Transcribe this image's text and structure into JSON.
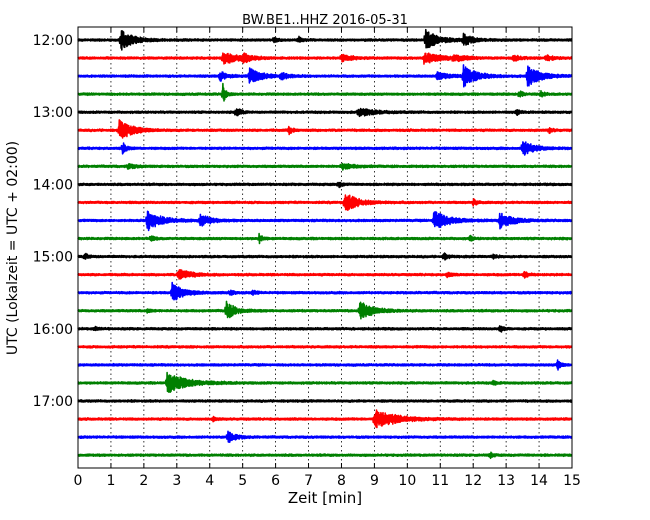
{
  "chart_data": {
    "type": "line",
    "title": "BW.BE1..HHZ 2016-05-31",
    "xlabel": "Zeit  [min]",
    "ylabel": "UTC (Lokalzeit = UTC + 02:00)",
    "xlim": [
      0,
      15
    ],
    "x_ticks": [
      "0",
      "1",
      "2",
      "3",
      "4",
      "5",
      "6",
      "7",
      "8",
      "9",
      "10",
      "11",
      "12",
      "13",
      "14",
      "15"
    ],
    "y_ticks": [
      "12:00",
      "13:00",
      "14:00",
      "15:00",
      "16:00",
      "17:00"
    ],
    "grid": "vertical dotted lines at each minute",
    "colors": [
      "#000000",
      "#ff0000",
      "#0000ff",
      "#008000"
    ],
    "trace_interval_min": 15,
    "series": [
      {
        "start": "12:00",
        "color": "#000000",
        "events": [
          {
            "t": 1.3,
            "a": 1.0,
            "d": 0.35
          },
          {
            "t": 5.95,
            "a": 0.25,
            "d": 0.1
          },
          {
            "t": 6.7,
            "a": 0.3,
            "d": 0.1
          },
          {
            "t": 10.55,
            "a": 1.0,
            "d": 0.35
          },
          {
            "t": 11.7,
            "a": 0.55,
            "d": 0.25
          }
        ]
      },
      {
        "start": "12:15",
        "color": "#ff0000",
        "events": [
          {
            "t": 4.4,
            "a": 0.6,
            "d": 0.45
          },
          {
            "t": 5.0,
            "a": 0.35,
            "d": 0.2
          },
          {
            "t": 8.0,
            "a": 0.35,
            "d": 0.3
          },
          {
            "t": 10.5,
            "a": 0.55,
            "d": 0.45
          },
          {
            "t": 11.4,
            "a": 0.3,
            "d": 0.3
          },
          {
            "t": 13.2,
            "a": 0.3,
            "d": 0.2
          },
          {
            "t": 14.2,
            "a": 0.3,
            "d": 0.2
          }
        ]
      },
      {
        "start": "12:30",
        "color": "#0000ff",
        "events": [
          {
            "t": 4.3,
            "a": 0.5,
            "d": 0.2
          },
          {
            "t": 5.2,
            "a": 0.8,
            "d": 0.35
          },
          {
            "t": 6.15,
            "a": 0.35,
            "d": 0.2
          },
          {
            "t": 10.9,
            "a": 0.35,
            "d": 0.35
          },
          {
            "t": 11.7,
            "a": 1.0,
            "d": 0.35
          },
          {
            "t": 13.65,
            "a": 1.0,
            "d": 0.35
          }
        ]
      },
      {
        "start": "12:45",
        "color": "#008000",
        "events": [
          {
            "t": 4.4,
            "a": 1.0,
            "d": 0.08
          },
          {
            "t": 13.4,
            "a": 0.5,
            "d": 0.08
          },
          {
            "t": 14.05,
            "a": 0.35,
            "d": 0.08
          }
        ]
      },
      {
        "start": "13:00",
        "color": "#000000",
        "events": [
          {
            "t": 4.8,
            "a": 0.5,
            "d": 0.12
          },
          {
            "t": 8.5,
            "a": 0.4,
            "d": 0.45
          },
          {
            "t": 13.3,
            "a": 0.3,
            "d": 0.1
          }
        ]
      },
      {
        "start": "13:15",
        "color": "#ff0000",
        "events": [
          {
            "t": 1.25,
            "a": 1.0,
            "d": 0.35
          },
          {
            "t": 6.4,
            "a": 0.4,
            "d": 0.1
          },
          {
            "t": 14.3,
            "a": 0.3,
            "d": 0.1
          }
        ]
      },
      {
        "start": "13:30",
        "color": "#0000ff",
        "events": [
          {
            "t": 1.35,
            "a": 0.6,
            "d": 0.1
          },
          {
            "t": 13.5,
            "a": 0.8,
            "d": 0.3
          }
        ]
      },
      {
        "start": "13:45",
        "color": "#008000",
        "events": [
          {
            "t": 1.5,
            "a": 0.25,
            "d": 0.2
          },
          {
            "t": 8.0,
            "a": 0.3,
            "d": 0.3
          }
        ]
      },
      {
        "start": "14:00",
        "color": "#000000",
        "events": [
          {
            "t": 7.9,
            "a": 0.3,
            "d": 0.1
          }
        ]
      },
      {
        "start": "14:15",
        "color": "#ff0000",
        "events": [
          {
            "t": 8.1,
            "a": 1.0,
            "d": 0.35
          },
          {
            "t": 12.0,
            "a": 0.35,
            "d": 0.1
          }
        ]
      },
      {
        "start": "14:30",
        "color": "#0000ff",
        "events": [
          {
            "t": 2.1,
            "a": 1.0,
            "d": 0.4
          },
          {
            "t": 3.7,
            "a": 0.6,
            "d": 0.3
          },
          {
            "t": 10.8,
            "a": 1.0,
            "d": 0.4
          },
          {
            "t": 12.8,
            "a": 0.8,
            "d": 0.35
          }
        ]
      },
      {
        "start": "14:45",
        "color": "#008000",
        "events": [
          {
            "t": 2.2,
            "a": 0.3,
            "d": 0.1
          },
          {
            "t": 5.5,
            "a": 0.5,
            "d": 0.08
          },
          {
            "t": 11.9,
            "a": 0.3,
            "d": 0.08
          }
        ]
      },
      {
        "start": "15:00",
        "color": "#000000",
        "events": [
          {
            "t": 0.2,
            "a": 0.35,
            "d": 0.1
          },
          {
            "t": 11.1,
            "a": 0.4,
            "d": 0.1
          },
          {
            "t": 12.6,
            "a": 0.25,
            "d": 0.1
          }
        ]
      },
      {
        "start": "15:15",
        "color": "#ff0000",
        "events": [
          {
            "t": 3.05,
            "a": 0.65,
            "d": 0.3
          },
          {
            "t": 11.2,
            "a": 0.25,
            "d": 0.1
          },
          {
            "t": 13.55,
            "a": 0.35,
            "d": 0.12
          }
        ]
      },
      {
        "start": "15:30",
        "color": "#0000ff",
        "events": [
          {
            "t": 2.85,
            "a": 1.0,
            "d": 0.3
          },
          {
            "t": 4.6,
            "a": 0.25,
            "d": 0.1
          },
          {
            "t": 5.3,
            "a": 0.25,
            "d": 0.1
          }
        ]
      },
      {
        "start": "15:45",
        "color": "#008000",
        "events": [
          {
            "t": 4.5,
            "a": 0.9,
            "d": 0.25
          },
          {
            "t": 8.55,
            "a": 1.0,
            "d": 0.35
          },
          {
            "t": 2.1,
            "a": 0.2,
            "d": 0.1
          }
        ]
      },
      {
        "start": "16:00",
        "color": "#000000",
        "events": [
          {
            "t": 12.8,
            "a": 0.5,
            "d": 0.08
          },
          {
            "t": 0.5,
            "a": 0.2,
            "d": 0.1
          }
        ]
      },
      {
        "start": "16:15",
        "color": "#ff0000",
        "events": []
      },
      {
        "start": "16:30",
        "color": "#0000ff",
        "events": [
          {
            "t": 14.55,
            "a": 0.55,
            "d": 0.1
          }
        ]
      },
      {
        "start": "16:45",
        "color": "#008000",
        "events": [
          {
            "t": 2.7,
            "a": 1.0,
            "d": 0.55
          },
          {
            "t": 12.6,
            "a": 0.25,
            "d": 0.08
          }
        ]
      },
      {
        "start": "17:00",
        "color": "#000000",
        "events": []
      },
      {
        "start": "17:15",
        "color": "#ff0000",
        "events": [
          {
            "t": 9.0,
            "a": 1.0,
            "d": 0.6
          },
          {
            "t": 4.1,
            "a": 0.2,
            "d": 0.1
          }
        ]
      },
      {
        "start": "17:30",
        "color": "#0000ff",
        "events": [
          {
            "t": 4.55,
            "a": 0.6,
            "d": 0.2
          }
        ]
      },
      {
        "start": "17:45",
        "color": "#008000",
        "events": [
          {
            "t": 12.5,
            "a": 0.35,
            "d": 0.08
          }
        ]
      }
    ]
  }
}
